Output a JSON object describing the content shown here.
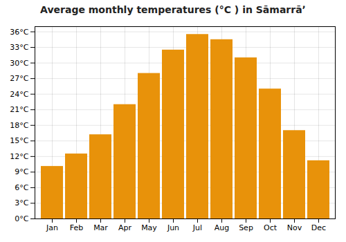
{
  "chart_data": {
    "type": "bar",
    "title": "Average monthly temperatures (°C ) in Sāmarrāʼ",
    "categories": [
      "Jan",
      "Feb",
      "Mar",
      "Apr",
      "May",
      "Jun",
      "Jul",
      "Aug",
      "Sep",
      "Oct",
      "Nov",
      "Dec"
    ],
    "values": [
      10.1,
      12.5,
      16.2,
      22.0,
      28.0,
      32.5,
      35.5,
      34.5,
      31.0,
      25.0,
      17.0,
      11.2
    ],
    "color": "#E8920A",
    "ylim": [
      0,
      37
    ],
    "yticks": [
      {
        "value": 0,
        "label": "0°C"
      },
      {
        "value": 3,
        "label": "3°C"
      },
      {
        "value": 6,
        "label": "6°C"
      },
      {
        "value": 9,
        "label": "9°C"
      },
      {
        "value": 12,
        "label": "12°C"
      },
      {
        "value": 15,
        "label": "15°C"
      },
      {
        "value": 18,
        "label": "18°C"
      },
      {
        "value": 21,
        "label": "21°C"
      },
      {
        "value": 24,
        "label": "24°C"
      },
      {
        "value": 27,
        "label": "27°C"
      },
      {
        "value": 30,
        "label": "30°C"
      },
      {
        "value": 33,
        "label": "33°C"
      },
      {
        "value": 36,
        "label": "36°C"
      }
    ],
    "grid": true
  }
}
